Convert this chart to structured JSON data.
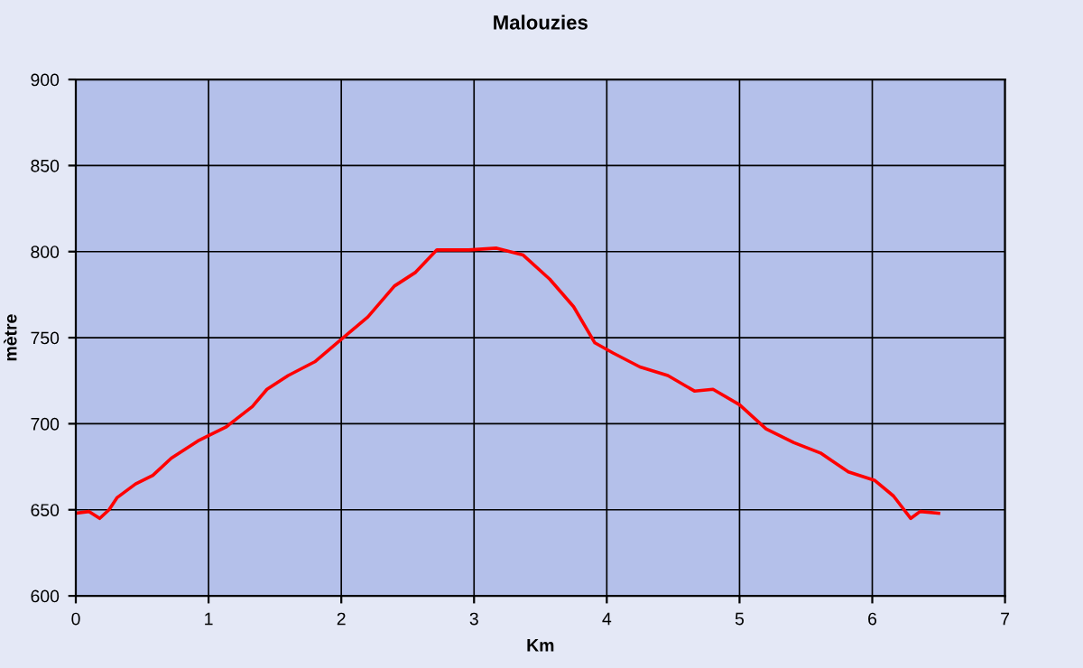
{
  "chart_data": {
    "type": "line",
    "title": "Malouzies",
    "xlabel": "Km",
    "ylabel": "mètre",
    "x": [
      0,
      0.1,
      0.18,
      0.25,
      0.31,
      0.45,
      0.58,
      0.72,
      0.92,
      1.13,
      1.33,
      1.44,
      1.6,
      1.8,
      2.0,
      2.2,
      2.4,
      2.56,
      2.72,
      2.96,
      3.17,
      3.37,
      3.57,
      3.75,
      3.91,
      4.05,
      4.25,
      4.46,
      4.66,
      4.8,
      5.0,
      5.2,
      5.41,
      5.61,
      5.82,
      6.02,
      6.16,
      6.29,
      6.36,
      6.5
    ],
    "series": [
      {
        "color": "#ff0000",
        "values": [
          648,
          649,
          645,
          650,
          657,
          665,
          670,
          680,
          690,
          698,
          710,
          720,
          728,
          736,
          749,
          762,
          780,
          788,
          801,
          801,
          802,
          798,
          784,
          768,
          747,
          741,
          733,
          728,
          719,
          720,
          711,
          697,
          689,
          683,
          672,
          667,
          658,
          645,
          649,
          648
        ]
      }
    ],
    "xlim": [
      0,
      7
    ],
    "xticks": [
      0,
      1,
      2,
      3,
      4,
      5,
      6,
      7
    ],
    "ylim": [
      600,
      900
    ],
    "yticks": [
      600,
      650,
      700,
      750,
      800,
      850,
      900
    ],
    "grid": true,
    "marker": "none",
    "line_style": "solid"
  }
}
